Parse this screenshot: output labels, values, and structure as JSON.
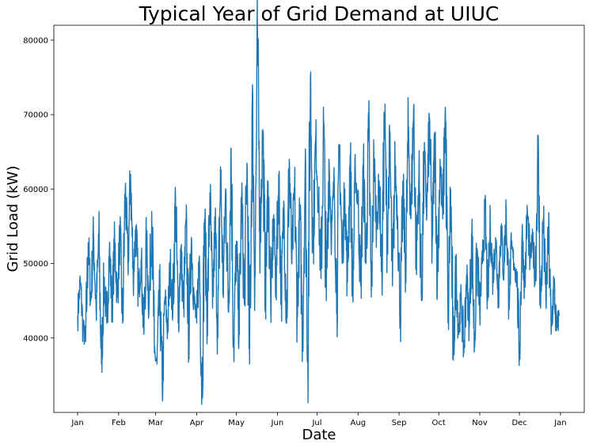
{
  "chart_data": {
    "type": "line",
    "title": "Typical Year of Grid Demand at UIUC",
    "xlabel": "Date",
    "ylabel": "Grid Load (kW)",
    "x_tick_labels": [
      "Jan",
      "Feb",
      "Mar",
      "Apr",
      "May",
      "Jun",
      "Jul",
      "Aug",
      "Sep",
      "Oct",
      "Nov",
      "Dec",
      "Jan"
    ],
    "x_tick_dates": [
      "2019-01-01",
      "2019-02-01",
      "2019-03-01",
      "2019-04-01",
      "2019-05-01",
      "2019-06-01",
      "2019-07-01",
      "2019-08-01",
      "2019-09-01",
      "2019-10-01",
      "2019-11-01",
      "2019-12-01",
      "2020-01-01"
    ],
    "y_ticks": [
      40000,
      50000,
      60000,
      70000,
      80000
    ],
    "y_tick_labels": [
      "40000",
      "50000",
      "60000",
      "70000",
      "80000"
    ],
    "xlim": [
      "2018-12-14",
      "2020-01-19"
    ],
    "ylim": [
      30000,
      82000
    ],
    "grid": false,
    "line_color": "#1f77b4",
    "series": [
      {
        "x": [
          "2019-01-01",
          "2019-01-03",
          "2019-01-05",
          "2019-01-07",
          "2019-01-09",
          "2019-01-11",
          "2019-01-13",
          "2019-01-15",
          "2019-01-17",
          "2019-01-19",
          "2019-01-21",
          "2019-01-23",
          "2019-01-25",
          "2019-01-27",
          "2019-01-29",
          "2019-01-31",
          "2019-02-02",
          "2019-02-04",
          "2019-02-06",
          "2019-02-08",
          "2019-02-10",
          "2019-02-12",
          "2019-02-14",
          "2019-02-16",
          "2019-02-18",
          "2019-02-20",
          "2019-02-22",
          "2019-02-24",
          "2019-02-26",
          "2019-02-28",
          "2019-03-02",
          "2019-03-04",
          "2019-03-06",
          "2019-03-08",
          "2019-03-10",
          "2019-03-12",
          "2019-03-14",
          "2019-03-16",
          "2019-03-18",
          "2019-03-20",
          "2019-03-22",
          "2019-03-24",
          "2019-03-26",
          "2019-03-28",
          "2019-03-30",
          "2019-04-01",
          "2019-04-03",
          "2019-04-05",
          "2019-04-07",
          "2019-04-09",
          "2019-04-11",
          "2019-04-13",
          "2019-04-15",
          "2019-04-17",
          "2019-04-19",
          "2019-04-21",
          "2019-04-23",
          "2019-04-25",
          "2019-04-27",
          "2019-04-29",
          "2019-05-01",
          "2019-05-03",
          "2019-05-05",
          "2019-05-07",
          "2019-05-09",
          "2019-05-11",
          "2019-05-13",
          "2019-05-15",
          "2019-05-17",
          "2019-05-19",
          "2019-05-21",
          "2019-05-23",
          "2019-05-25",
          "2019-05-27",
          "2019-05-29",
          "2019-05-31",
          "2019-06-02",
          "2019-06-04",
          "2019-06-06",
          "2019-06-08",
          "2019-06-10",
          "2019-06-12",
          "2019-06-14",
          "2019-06-16",
          "2019-06-18",
          "2019-06-20",
          "2019-06-22",
          "2019-06-24",
          "2019-06-26",
          "2019-06-28",
          "2019-06-30",
          "2019-07-02",
          "2019-07-04",
          "2019-07-06",
          "2019-07-08",
          "2019-07-10",
          "2019-07-12",
          "2019-07-14",
          "2019-07-16",
          "2019-07-18",
          "2019-07-20",
          "2019-07-22",
          "2019-07-24",
          "2019-07-26",
          "2019-07-28",
          "2019-07-30",
          "2019-08-01",
          "2019-08-03",
          "2019-08-05",
          "2019-08-07",
          "2019-08-09",
          "2019-08-11",
          "2019-08-13",
          "2019-08-15",
          "2019-08-17",
          "2019-08-19",
          "2019-08-21",
          "2019-08-23",
          "2019-08-25",
          "2019-08-27",
          "2019-08-29",
          "2019-08-31",
          "2019-09-02",
          "2019-09-04",
          "2019-09-06",
          "2019-09-08",
          "2019-09-10",
          "2019-09-12",
          "2019-09-14",
          "2019-09-16",
          "2019-09-18",
          "2019-09-20",
          "2019-09-22",
          "2019-09-24",
          "2019-09-26",
          "2019-09-28",
          "2019-09-30",
          "2019-10-02",
          "2019-10-04",
          "2019-10-06",
          "2019-10-08",
          "2019-10-10",
          "2019-10-12",
          "2019-10-14",
          "2019-10-16",
          "2019-10-18",
          "2019-10-20",
          "2019-10-22",
          "2019-10-24",
          "2019-10-26",
          "2019-10-28",
          "2019-10-30",
          "2019-11-01",
          "2019-11-03",
          "2019-11-05",
          "2019-11-07",
          "2019-11-09",
          "2019-11-11",
          "2019-11-13",
          "2019-11-15",
          "2019-11-17",
          "2019-11-19",
          "2019-11-21",
          "2019-11-23",
          "2019-11-25",
          "2019-11-27",
          "2019-11-29",
          "2019-12-01",
          "2019-12-03",
          "2019-12-05",
          "2019-12-07",
          "2019-12-09",
          "2019-12-11",
          "2019-12-13",
          "2019-12-15",
          "2019-12-17",
          "2019-12-19",
          "2019-12-21",
          "2019-12-23",
          "2019-12-25",
          "2019-12-27",
          "2019-12-29",
          "2019-12-31"
        ],
        "y": [
          43000,
          47500,
          41500,
          39500,
          52800,
          45000,
          54000,
          43500,
          53500,
          36500,
          48000,
          42000,
          52000,
          44000,
          53000,
          45500,
          54000,
          42000,
          60000,
          50000,
          62000,
          48000,
          55000,
          46000,
          50500,
          40500,
          53000,
          44000,
          57000,
          38000,
          36500,
          46500,
          33000,
          45500,
          41000,
          50000,
          43500,
          59000,
          42000,
          52000,
          44000,
          55000,
          40000,
          53500,
          45000,
          42000,
          51000,
          33000,
          56000,
          42500,
          59500,
          44000,
          55500,
          40000,
          63000,
          46500,
          60000,
          43500,
          65500,
          38500,
          53000,
          41000,
          59000,
          44500,
          63500,
          36500,
          72000,
          48000,
          79800,
          54000,
          68000,
          46000,
          61000,
          44000,
          56000,
          47000,
          62000,
          45500,
          58000,
          42000,
          64000,
          50000,
          60000,
          43500,
          57000,
          40000,
          63000,
          38000,
          75000,
          52000,
          67000,
          58500,
          48000,
          69000,
          45000,
          64000,
          54000,
          61000,
          45000,
          66000,
          50000,
          60000,
          47500,
          64500,
          46000,
          62000,
          58000,
          47000,
          63000,
          50000,
          68000,
          45500,
          64000,
          55000,
          61000,
          48500,
          70000,
          53000,
          66000,
          47000,
          63000,
          56000,
          43000,
          60000,
          49000,
          68000,
          56000,
          71000,
          50500,
          62000,
          45000,
          64500,
          57000,
          69500,
          52000,
          67000,
          48000,
          64000,
          56000,
          71000,
          42000,
          60000,
          37000,
          49500,
          41000,
          45500,
          38000,
          48500,
          42000,
          54000,
          39000,
          52000,
          43500,
          50000,
          57000,
          45000,
          55000,
          48000,
          53500,
          46000,
          55000,
          49000,
          57000,
          45500,
          52000,
          50000,
          48000,
          38000,
          54000,
          47000,
          57000,
          50500,
          53000,
          48000,
          65000,
          44000,
          56000,
          45000,
          54000,
          40500,
          47500,
          41000,
          43000
        ]
      }
    ]
  }
}
